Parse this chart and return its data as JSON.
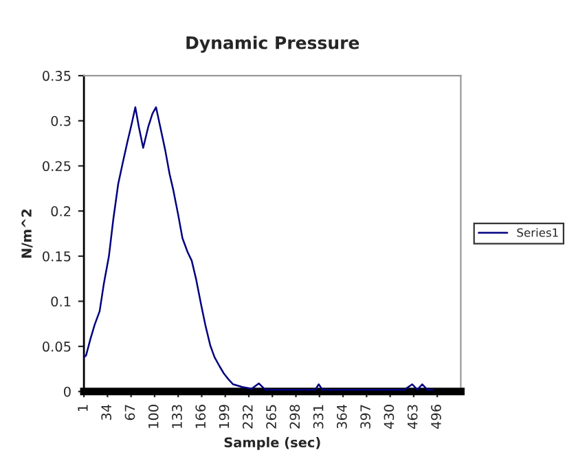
{
  "chart_data": {
    "type": "line",
    "title": "Dynamic Pressure",
    "xlabel": "Sample (sec)",
    "ylabel": "N/m^2",
    "series": [
      {
        "name": "Series1",
        "color": "#000080",
        "x": [
          1,
          4,
          10,
          16,
          23,
          29,
          36,
          42,
          49,
          55,
          62,
          68,
          73,
          78,
          84,
          91,
          97,
          102,
          108,
          115,
          121,
          126,
          133,
          139,
          146,
          152,
          158,
          165,
          171,
          178,
          184,
          191,
          197,
          204,
          210,
          223,
          236,
          246,
          255,
          270,
          290,
          310,
          325,
          330,
          335,
          350,
          370,
          390,
          410,
          430,
          450,
          461,
          468,
          475,
          482,
          490
        ],
        "values": [
          0.038,
          0.04,
          0.058,
          0.074,
          0.089,
          0.12,
          0.15,
          0.19,
          0.23,
          0.252,
          0.277,
          0.297,
          0.315,
          0.293,
          0.27,
          0.293,
          0.308,
          0.315,
          0.293,
          0.267,
          0.241,
          0.224,
          0.196,
          0.17,
          0.155,
          0.145,
          0.125,
          0.097,
          0.074,
          0.051,
          0.038,
          0.028,
          0.02,
          0.013,
          0.008,
          0.005,
          0.003,
          0.009,
          0.002,
          0.002,
          0.002,
          0.002,
          0.002,
          0.008,
          0.002,
          0.002,
          0.002,
          0.002,
          0.002,
          0.002,
          0.002,
          0.008,
          0.002,
          0.008,
          0.002,
          0.002
        ]
      }
    ],
    "xlim": [
      1,
      529
    ],
    "xticks": [
      1,
      34,
      67,
      100,
      133,
      166,
      199,
      232,
      265,
      298,
      331,
      364,
      397,
      430,
      463,
      496
    ],
    "ylim": [
      0,
      0.35
    ],
    "yticks": [
      0,
      0.05,
      0.1,
      0.15,
      0.2,
      0.25,
      0.3,
      0.35
    ],
    "grid": false,
    "legend": "right",
    "marker": "none",
    "line_style": "solid"
  }
}
